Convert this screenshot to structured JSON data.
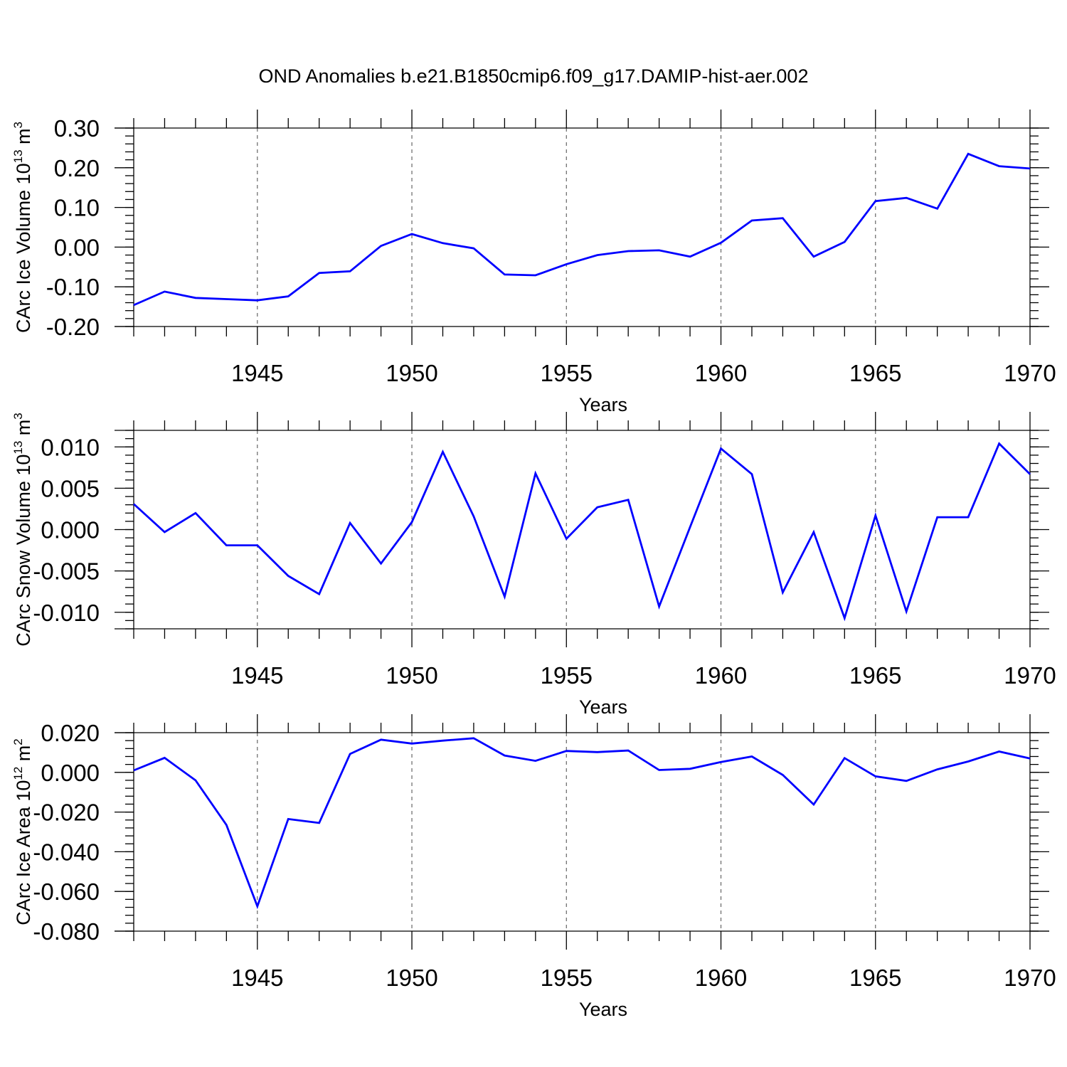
{
  "chart_data": {
    "title": "OND Anomalies b.e21.B1850cmip6.f09_g17.DAMIP-hist-aer.002",
    "line_color": "#0000ff",
    "panels": [
      {
        "type": "line",
        "ylabel": "CArc Ice Volume 10",
        "ylabel_exp": "13",
        "ylabel_unit": " m",
        "ylabel_unit_exp": "3",
        "xlabel": "Years",
        "xlim": [
          1941,
          1970
        ],
        "ylim": [
          -0.2,
          0.3
        ],
        "x_ticks": [
          1945,
          1950,
          1955,
          1960,
          1965,
          1970
        ],
        "x_tick_labels": [
          "1945",
          "1950",
          "1955",
          "1960",
          "1965",
          "1970"
        ],
        "y_ticks": [
          -0.2,
          -0.1,
          0.0,
          0.1,
          0.2,
          0.3
        ],
        "y_tick_labels": [
          "-0.20",
          "-0.10",
          "0.00",
          "0.10",
          "0.20",
          "0.30"
        ],
        "y_minor_step": 0.02,
        "x": [
          1941,
          1942,
          1943,
          1944,
          1945,
          1946,
          1947,
          1948,
          1949,
          1950,
          1951,
          1952,
          1953,
          1954,
          1955,
          1956,
          1957,
          1958,
          1959,
          1960,
          1961,
          1962,
          1963,
          1964,
          1965,
          1966,
          1967,
          1968,
          1969,
          1970
        ],
        "values": [
          -0.146,
          -0.112,
          -0.128,
          -0.131,
          -0.134,
          -0.124,
          -0.065,
          -0.061,
          0.003,
          0.033,
          0.01,
          -0.003,
          -0.069,
          -0.071,
          -0.043,
          -0.02,
          -0.01,
          -0.008,
          -0.024,
          0.011,
          0.067,
          0.073,
          -0.024,
          0.013,
          0.116,
          0.124,
          0.097,
          0.235,
          0.204,
          0.198
        ]
      },
      {
        "type": "line",
        "ylabel": "CArc Snow Volume 10",
        "ylabel_exp": "13",
        "ylabel_unit": " m",
        "ylabel_unit_exp": "3",
        "xlabel": "Years",
        "xlim": [
          1941,
          1970
        ],
        "ylim": [
          -0.012,
          0.012
        ],
        "x_ticks": [
          1945,
          1950,
          1955,
          1960,
          1965,
          1970
        ],
        "x_tick_labels": [
          "1945",
          "1950",
          "1955",
          "1960",
          "1965",
          "1970"
        ],
        "y_ticks": [
          -0.01,
          -0.005,
          0.0,
          0.005,
          0.01
        ],
        "y_tick_labels": [
          "-0.010",
          "-0.005",
          "0.000",
          "0.005",
          "0.010"
        ],
        "y_minor_step": 0.001,
        "x": [
          1941,
          1942,
          1943,
          1944,
          1945,
          1946,
          1947,
          1948,
          1949,
          1950,
          1951,
          1952,
          1953,
          1954,
          1955,
          1956,
          1957,
          1958,
          1959,
          1960,
          1961,
          1962,
          1963,
          1964,
          1965,
          1966,
          1967,
          1968,
          1969,
          1970
        ],
        "values": [
          0.0031,
          -0.0003,
          0.002,
          -0.0019,
          -0.0019,
          -0.0056,
          -0.0078,
          0.0008,
          -0.0041,
          0.0009,
          0.0094,
          0.0016,
          -0.0081,
          0.0068,
          -0.0011,
          0.0027,
          0.0036,
          -0.0093,
          0.0003,
          0.0098,
          0.0067,
          -0.0076,
          -0.0003,
          -0.0107,
          0.0017,
          -0.0099,
          0.0015,
          0.0015,
          0.0104,
          0.0067
        ]
      },
      {
        "type": "line",
        "ylabel": "CArc Ice Area 10",
        "ylabel_exp": "12",
        "ylabel_unit": " m",
        "ylabel_unit_exp": "2",
        "xlabel": "Years",
        "xlim": [
          1941,
          1970
        ],
        "ylim": [
          -0.08,
          0.02
        ],
        "x_ticks": [
          1945,
          1950,
          1955,
          1960,
          1965,
          1970
        ],
        "x_tick_labels": [
          "1945",
          "1950",
          "1955",
          "1960",
          "1965",
          "1970"
        ],
        "y_ticks": [
          -0.08,
          -0.06,
          -0.04,
          -0.02,
          0.0,
          0.02
        ],
        "y_tick_labels": [
          "-0.080",
          "-0.060",
          "-0.040",
          "-0.020",
          "0.000",
          "0.020"
        ],
        "y_minor_step": 0.004,
        "x": [
          1941,
          1942,
          1943,
          1944,
          1945,
          1946,
          1947,
          1948,
          1949,
          1950,
          1951,
          1952,
          1953,
          1954,
          1955,
          1956,
          1957,
          1958,
          1959,
          1960,
          1961,
          1962,
          1963,
          1964,
          1965,
          1966,
          1967,
          1968,
          1969,
          1970
        ],
        "values": [
          0.001,
          0.0073,
          -0.004,
          -0.0265,
          -0.0675,
          -0.0235,
          -0.0255,
          0.0093,
          0.0165,
          0.0145,
          0.016,
          0.0172,
          0.0085,
          0.0058,
          0.0108,
          0.0102,
          0.011,
          0.0012,
          0.0018,
          0.0052,
          0.008,
          -0.0013,
          -0.0162,
          0.0072,
          -0.002,
          -0.0043,
          0.0015,
          0.0055,
          0.0105,
          0.007
        ]
      }
    ]
  }
}
